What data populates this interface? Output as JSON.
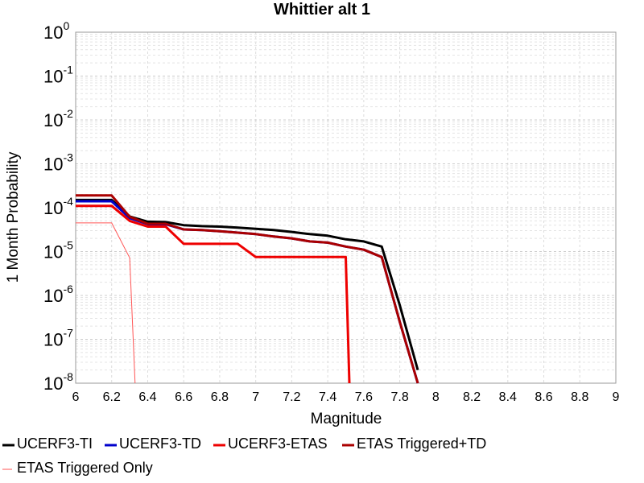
{
  "chart_data": {
    "type": "line",
    "title": "Whittier alt 1",
    "xlabel": "Magnitude",
    "ylabel": "1 Month Probability",
    "xlim": [
      6,
      9
    ],
    "ylim": [
      1e-08,
      1
    ],
    "yscale": "log",
    "grid": true,
    "legend_position": "bottom",
    "x_ticks": [
      "6",
      "6.2",
      "6.4",
      "6.6",
      "6.8",
      "7",
      "7.2",
      "7.4",
      "7.6",
      "7.8",
      "8",
      "8.2",
      "8.4",
      "8.6",
      "8.8",
      "9"
    ],
    "y_ticks": [
      {
        "base": "10",
        "exp": "-8"
      },
      {
        "base": "10",
        "exp": "-7"
      },
      {
        "base": "10",
        "exp": "-6"
      },
      {
        "base": "10",
        "exp": "-5"
      },
      {
        "base": "10",
        "exp": "-4"
      },
      {
        "base": "10",
        "exp": "-3"
      },
      {
        "base": "10",
        "exp": "-2"
      },
      {
        "base": "10",
        "exp": "-1"
      },
      {
        "base": "10",
        "exp": "0"
      }
    ],
    "series": [
      {
        "name": "UCERF3-TI",
        "color": "#000000",
        "x": [
          6.0,
          6.2,
          6.3,
          6.4,
          6.5,
          6.6,
          6.7,
          6.8,
          6.9,
          7.0,
          7.1,
          7.2,
          7.3,
          7.4,
          7.5,
          7.6,
          7.7,
          7.8,
          7.9
        ],
        "y": [
          0.00015,
          0.00015,
          6.3e-05,
          4.8e-05,
          4.7e-05,
          4e-05,
          3.8e-05,
          3.7e-05,
          3.5e-05,
          3.3e-05,
          3.1e-05,
          2.8e-05,
          2.5e-05,
          2.3e-05,
          1.9e-05,
          1.7e-05,
          1.3e-05,
          6e-07,
          2e-08
        ]
      },
      {
        "name": "UCERF3-TD",
        "color": "#0000cc",
        "x": [
          6.0,
          6.2,
          6.3,
          6.4,
          6.5,
          6.6,
          6.7,
          6.8,
          6.9,
          7.0,
          7.1,
          7.2,
          7.3,
          7.4,
          7.5,
          7.6,
          7.7,
          7.8,
          7.9
        ],
        "y": [
          0.00014,
          0.00014,
          5.8e-05,
          4.2e-05,
          4.2e-05,
          3.2e-05,
          3.1e-05,
          2.9e-05,
          2.7e-05,
          2.5e-05,
          2.2e-05,
          2e-05,
          1.7e-05,
          1.6e-05,
          1.3e-05,
          1.1e-05,
          7.5e-06,
          2.5e-07,
          8e-09
        ]
      },
      {
        "name": "UCERF3-ETAS",
        "color": "#ee0000",
        "x": [
          6.0,
          6.2,
          6.3,
          6.4,
          6.5,
          6.6,
          6.7,
          6.8,
          6.9,
          7.0,
          7.1,
          7.2,
          7.3,
          7.4,
          7.5,
          7.52
        ],
        "y": [
          0.00011,
          0.00011,
          5e-05,
          3.7e-05,
          3.7e-05,
          1.5e-05,
          1.5e-05,
          1.5e-05,
          1.5e-05,
          7.5e-06,
          7.5e-06,
          7.5e-06,
          7.5e-06,
          7.5e-06,
          7.5e-06,
          8e-09
        ]
      },
      {
        "name": "ETAS Triggered+TD",
        "color": "#aa0000",
        "x": [
          6.0,
          6.2,
          6.3,
          6.4,
          6.5,
          6.6,
          6.7,
          6.8,
          6.9,
          7.0,
          7.1,
          7.2,
          7.3,
          7.4,
          7.5,
          7.6,
          7.7,
          7.8,
          7.9
        ],
        "y": [
          0.00019,
          0.00019,
          6.2e-05,
          4.3e-05,
          4.3e-05,
          3.2e-05,
          3.1e-05,
          2.9e-05,
          2.7e-05,
          2.5e-05,
          2.2e-05,
          2e-05,
          1.7e-05,
          1.6e-05,
          1.3e-05,
          1.1e-05,
          7.5e-06,
          2.5e-07,
          8e-09
        ]
      },
      {
        "name": "ETAS Triggered Only",
        "color": "#ff5555",
        "x": [
          6.0,
          6.2,
          6.3,
          6.33
        ],
        "y": [
          4.5e-05,
          4.5e-05,
          7.2e-06,
          8e-09
        ]
      }
    ]
  }
}
